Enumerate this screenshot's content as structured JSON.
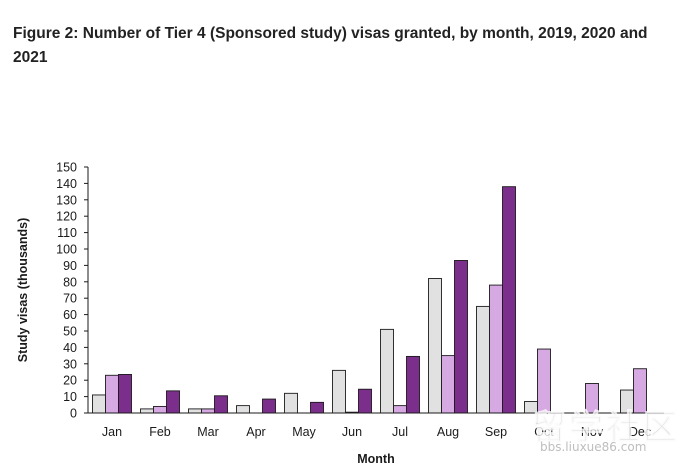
{
  "figure": {
    "title": "Figure 2: Number of Tier 4 (Sponsored study) visas granted, by month, 2019, 2020 and 2021"
  },
  "chart_data": {
    "type": "bar",
    "title": "Figure 2: Number of Tier 4 (Sponsored study) visas granted, by month, 2019, 2020 and 2021",
    "xlabel": "Month",
    "ylabel": "Study visas (thousands)",
    "ylim": [
      0,
      150
    ],
    "ytick_step": 10,
    "grid": false,
    "categories": [
      "Jan",
      "Feb",
      "Mar",
      "Apr",
      "May",
      "Jun",
      "Jul",
      "Aug",
      "Sep",
      "Oct",
      "Nov",
      "Dec"
    ],
    "series": [
      {
        "color": "#e1e1e1",
        "values": [
          11,
          2.5,
          2.5,
          4.5,
          12,
          26,
          51,
          82,
          65,
          7,
          0,
          14
        ]
      },
      {
        "color": "#d6a9e3",
        "values": [
          23,
          4,
          2.5,
          0,
          0,
          0.5,
          4.5,
          35,
          78,
          39,
          18,
          27
        ]
      },
      {
        "color": "#7b2e8c",
        "values": [
          23.5,
          13.5,
          10.5,
          8.5,
          6.5,
          14.5,
          34.5,
          93,
          138,
          null,
          null,
          null
        ]
      }
    ]
  },
  "watermark": {
    "text": "留学社区",
    "url": "bbs.liuxue86.com"
  }
}
